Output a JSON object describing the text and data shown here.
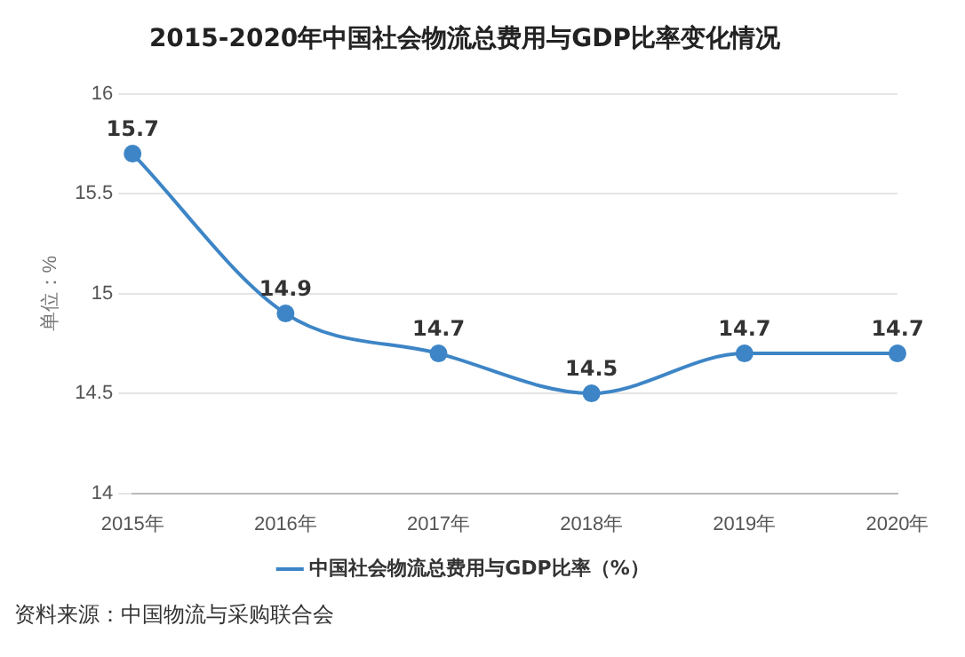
{
  "chart_data": {
    "type": "line",
    "title": "2015-2020年中国社会物流总费用与GDP比率变化情况",
    "ylabel": "单位：%",
    "categories": [
      "2015年",
      "2016年",
      "2017年",
      "2018年",
      "2019年",
      "2020年"
    ],
    "series": [
      {
        "name": "中国社会物流总费用与GDP比率（%）",
        "color": "#3d85c6",
        "values": [
          15.7,
          14.9,
          14.7,
          14.5,
          14.7,
          14.7
        ]
      }
    ],
    "ylim": [
      14,
      16
    ],
    "yticks": [
      14,
      14.5,
      15,
      15.5,
      16
    ],
    "grid": "y",
    "legend": "bottom",
    "marker": "circle",
    "data_labels": true,
    "annotations": [
      "资料来源：中国物流与采购联合会"
    ]
  }
}
